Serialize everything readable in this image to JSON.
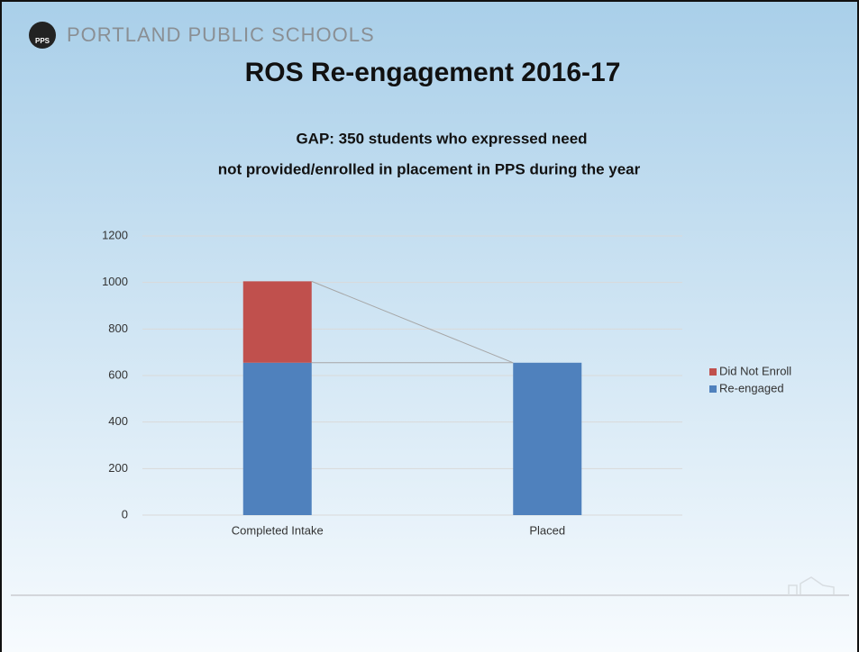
{
  "brand": {
    "logo": "PPS",
    "name": "PORTLAND PUBLIC SCHOOLS"
  },
  "chart_data": {
    "type": "bar",
    "stacked": true,
    "title": "ROS Re-engagement 2016-17",
    "subtitle": [
      "GAP:  350 students who expressed need",
      "not provided/enrolled in placement in PPS during the year"
    ],
    "categories": [
      "Completed Intake",
      "Placed"
    ],
    "series": [
      {
        "name": "Re-engaged",
        "color": "#4f81bd",
        "values": [
          655,
          655
        ]
      },
      {
        "name": "Did Not Enroll",
        "color": "#c0504d",
        "values": [
          350,
          0
        ]
      }
    ],
    "ylim": [
      0,
      1200
    ],
    "yticks": [
      0,
      200,
      400,
      600,
      800,
      1000,
      1200
    ],
    "grid": true,
    "legend": "right"
  }
}
